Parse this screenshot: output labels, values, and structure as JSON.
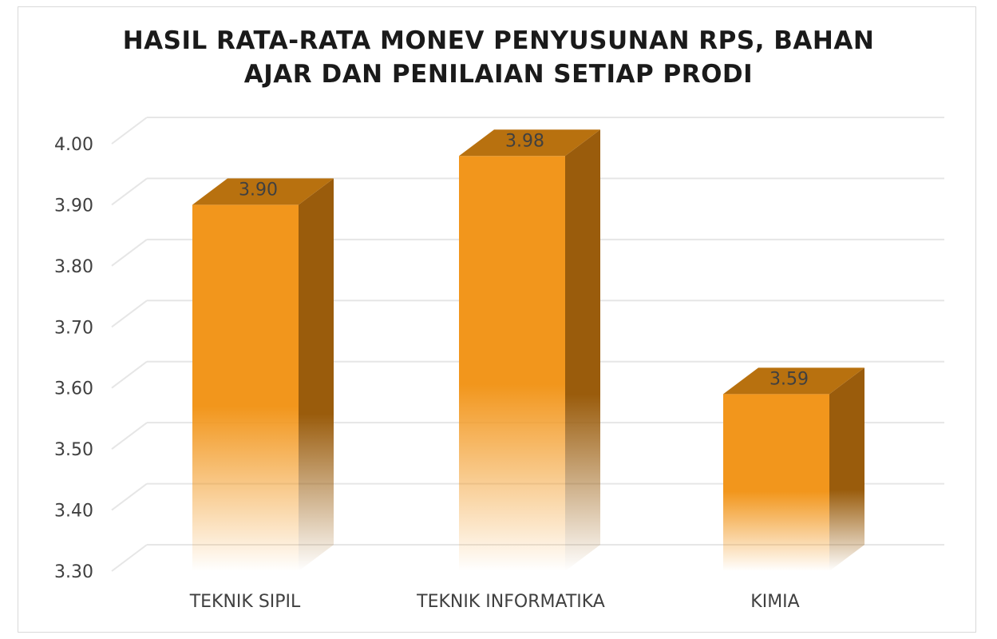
{
  "chart_data": {
    "type": "bar",
    "title_lines": [
      "HASIL RATA-RATA MONEV PENYUSUNAN RPS, BAHAN",
      "AJAR DAN PENILAIAN SETIAP PRODI"
    ],
    "categories": [
      "TEKNIK SIPIL",
      "TEKNIK INFORMATIKA",
      "KIMIA"
    ],
    "values": [
      3.9,
      3.98,
      3.59
    ],
    "data_labels": [
      "3.90",
      "3.98",
      "3.59"
    ],
    "ylim": [
      3.3,
      4.0
    ],
    "y_ticks": [
      "3.30",
      "3.40",
      "3.50",
      "3.60",
      "3.70",
      "3.80",
      "3.90",
      "4.00"
    ],
    "grid": true,
    "style": "3d-column",
    "colors": {
      "front": "#f2961c",
      "side": "#9a5c0c",
      "top": "#b8710f",
      "grid": "#e6e6e6"
    }
  }
}
